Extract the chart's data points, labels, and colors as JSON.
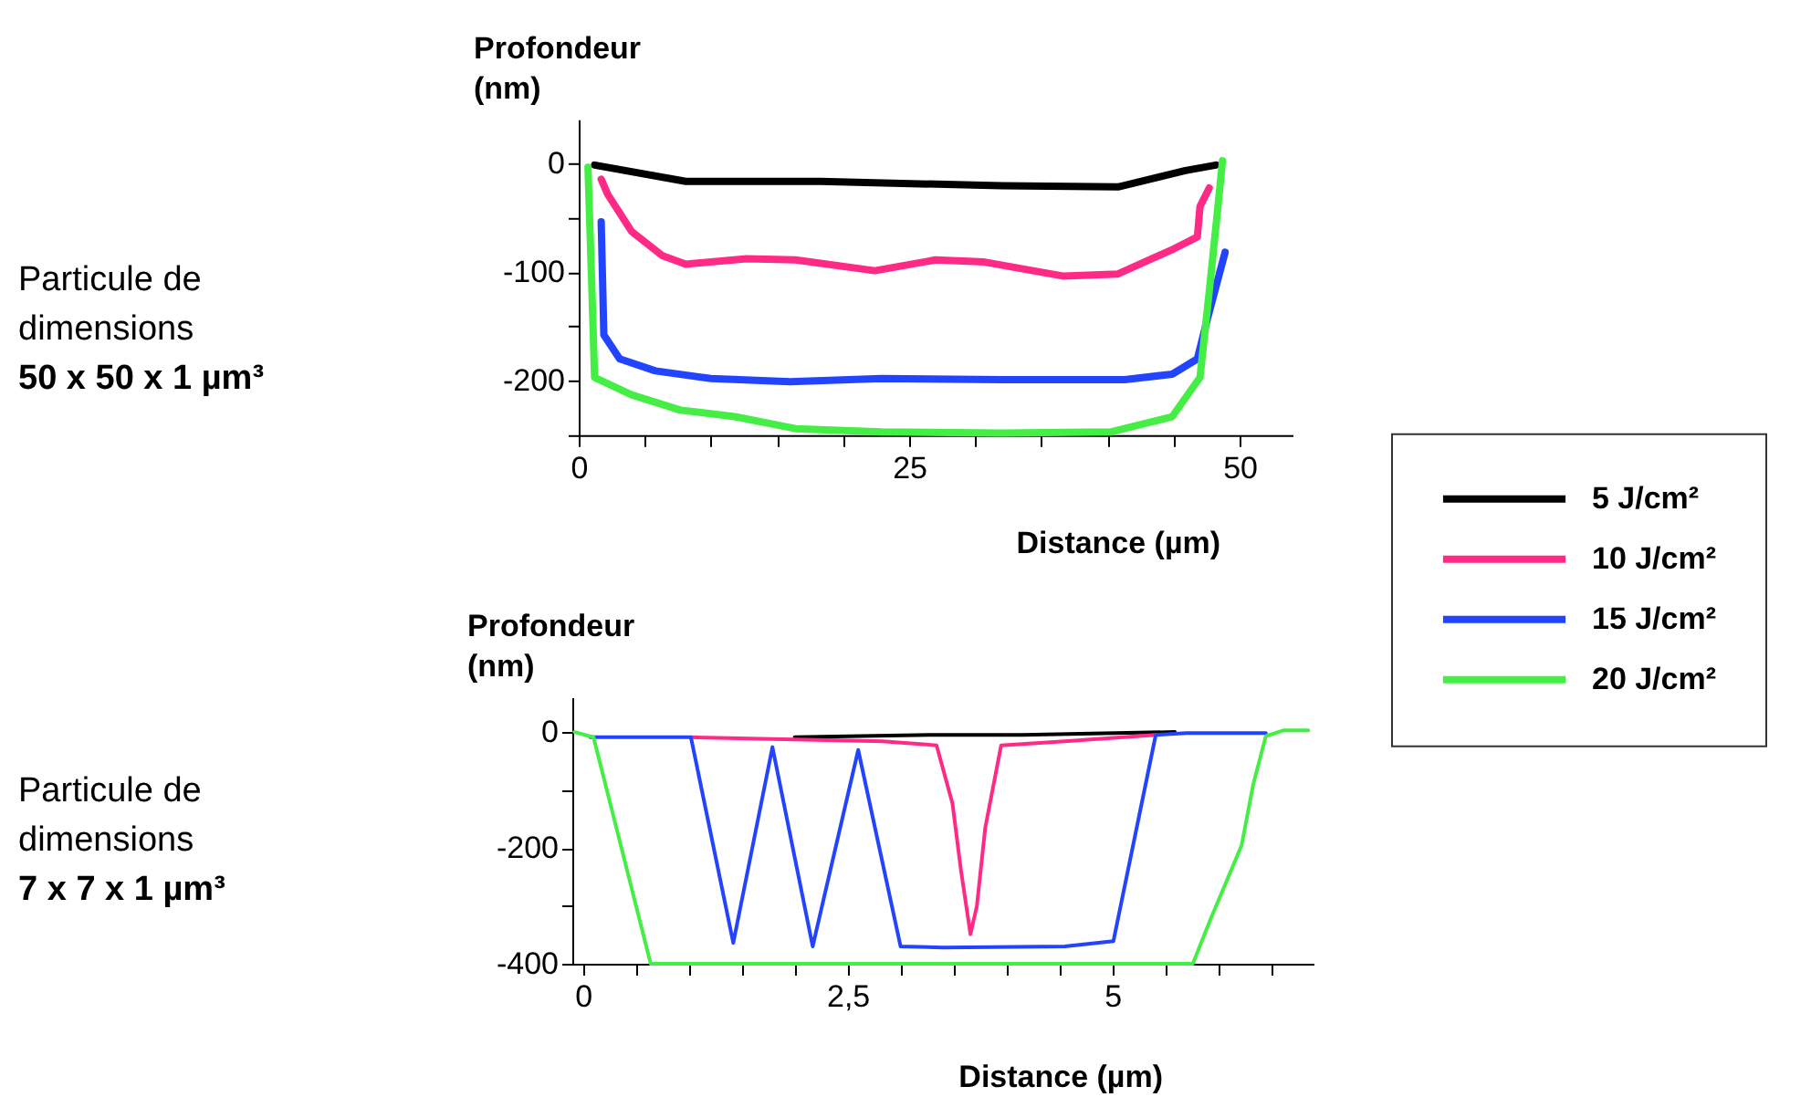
{
  "chart_data": [
    {
      "type": "line",
      "ylabel": "Profondeur (nm)",
      "xlabel": "Distance (µm)",
      "annotations": [
        "Particule de dimensions",
        "50 x 50 x 1 µm³"
      ],
      "xlim": [
        0,
        54
      ],
      "ylim": [
        -250,
        40
      ],
      "xticks": [
        0,
        {
          "value": 5,
          "label": null
        },
        {
          "value": 10,
          "label": null
        },
        {
          "value": 15,
          "label": null
        },
        {
          "value": 20,
          "label": null
        },
        25,
        {
          "value": 30,
          "label": null
        },
        {
          "value": 35,
          "label": null
        },
        {
          "value": 40,
          "label": null
        },
        {
          "value": 45,
          "label": null
        },
        50
      ],
      "yticks": [
        0,
        {
          "value": -50,
          "label": null
        },
        -100,
        {
          "value": -150,
          "label": null
        },
        -200,
        {
          "value": -250,
          "label": null
        }
      ],
      "grid": false,
      "legend": "right",
      "series": [
        {
          "name": "5 J/cm²",
          "color": "#000000",
          "x": [
            1.2,
            8.1,
            18.3,
            32,
            40.8,
            45.9,
            48.2
          ],
          "values": [
            -2,
            -17,
            -17,
            -21,
            -22,
            -7,
            -2
          ]
        },
        {
          "name": "10 J/cm²",
          "color": "#ff2a85",
          "x": [
            1.7,
            2.2,
            4,
            6.3,
            8.1,
            12.7,
            16.4,
            22.4,
            27,
            30.7,
            36.7,
            40.8,
            45,
            46.8,
            47,
            47.7
          ],
          "values": [
            -15,
            -29,
            -63,
            -85,
            -93,
            -88,
            -89,
            -99,
            -89,
            -91,
            -104,
            -102,
            -79,
            -68,
            -40,
            -23
          ]
        },
        {
          "name": "15 J/cm²",
          "color": "#2244ff",
          "x": [
            1.7,
            1.9,
            3.1,
            5.8,
            10,
            16,
            22.9,
            32,
            41.3,
            44.9,
            46.8,
            47.5,
            48.9
          ],
          "values": [
            -54,
            -158,
            -180,
            -191,
            -198,
            -201,
            -198,
            -199,
            -199,
            -194,
            -180,
            -146,
            -82
          ]
        },
        {
          "name": "20 J/cm²",
          "color": "#44ee44",
          "x": [
            0.7,
            1,
            1.2,
            4,
            7.7,
            11.8,
            16.4,
            22.9,
            32,
            40.3,
            44.9,
            47,
            47.7,
            48.4,
            48.7
          ],
          "values": [
            -4,
            -118,
            -197,
            -213,
            -227,
            -233,
            -244,
            -247,
            -248,
            -247,
            -233,
            -197,
            -118,
            -35,
            2
          ]
        }
      ]
    },
    {
      "type": "line",
      "ylabel": "Profondeur (nm)",
      "xlabel": "Distance (µm)",
      "annotations": [
        "Particule de dimensions",
        "7 x 7 x 1 µm³"
      ],
      "xlim": [
        -0.1,
        6.9
      ],
      "ylim": [
        -400,
        60
      ],
      "xticks": [
        0,
        {
          "value": 0.5,
          "label": null
        },
        {
          "value": 1,
          "label": null
        },
        {
          "value": 1.5,
          "label": null
        },
        {
          "value": 2,
          "label": null
        },
        {
          "value": 2.5,
          "label": "2,5"
        },
        {
          "value": 3,
          "label": null
        },
        {
          "value": 3.5,
          "label": null
        },
        {
          "value": 4,
          "label": null
        },
        {
          "value": 4.5,
          "label": null
        },
        5,
        {
          "value": 5.5,
          "label": null
        },
        {
          "value": 6,
          "label": null
        },
        {
          "value": 6.5,
          "label": null
        }
      ],
      "yticks": [
        0,
        {
          "value": -100,
          "label": null
        },
        -200,
        {
          "value": -300,
          "label": null
        },
        -400
      ],
      "grid": false,
      "series": [
        {
          "color": "#000000",
          "x": [
            2,
            3.29,
            4.15,
            5.59
          ],
          "values": [
            -9,
            -5,
            -5,
            0
          ]
        },
        {
          "color": "#ff2a85",
          "x": [
            1.02,
            2.83,
            3.34,
            3.49,
            3.57,
            3.66,
            3.72,
            3.8,
            3.95,
            4.55,
            5.41
          ],
          "values": [
            -9,
            -16,
            -23,
            -123,
            -238,
            -349,
            -301,
            -165,
            -23,
            -16,
            -5
          ]
        },
        {
          "color": "#2244ff",
          "x": [
            0.07,
            1.02,
            1.42,
            1.79,
            2.17,
            2.6,
            3,
            3.4,
            4.55,
            5.01,
            5.41,
            5.7,
            6.45
          ],
          "values": [
            -9,
            -9,
            -364,
            -26,
            -370,
            -31,
            -370,
            -372,
            -370,
            -361,
            -5,
            -2,
            -2
          ]
        },
        {
          "color": "#44ee44",
          "x": [
            -0.08,
            0.1,
            0.64,
            2.25,
            5.76,
            5.93,
            6.22,
            6.33,
            6.45,
            6.62,
            6.85
          ],
          "values": [
            0,
            -9,
            -400,
            -400,
            -400,
            -322,
            -196,
            -91,
            -7,
            3,
            3
          ]
        }
      ]
    }
  ]
}
